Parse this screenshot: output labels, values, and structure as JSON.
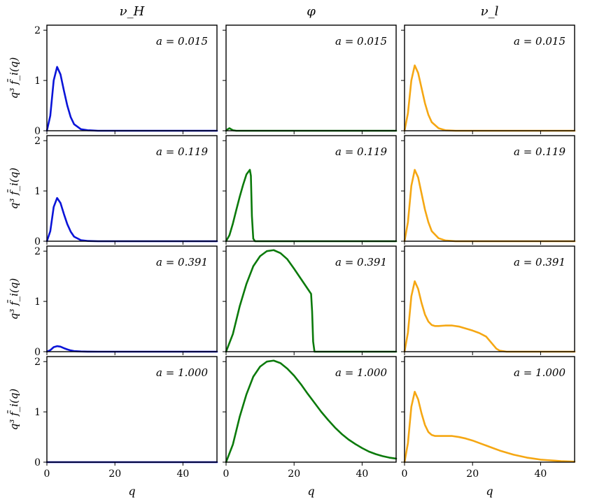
{
  "chart_data": {
    "type": "line",
    "layout": "grid of line plots, 4 rows by 3 columns, shared axes",
    "column_titles": [
      "ν_H",
      "φ",
      "ν_l"
    ],
    "row_labels": [
      "a = 0.015",
      "a = 0.119",
      "a = 0.391",
      "a = 1.000"
    ],
    "xlabel": "q",
    "ylabel": "q³ f̄_i(q)",
    "xlim": [
      0,
      50
    ],
    "ylim": [
      0,
      2.1
    ],
    "xticks": [
      0,
      20,
      40
    ],
    "yticks": [
      0,
      1,
      2
    ],
    "grid": false,
    "legend": "none",
    "colors": {
      "nu_H": "#0a14d8",
      "phi": "#0b7a0b",
      "nu_l": "#f5a713"
    },
    "series": [
      {
        "col": 0,
        "row": 0,
        "x": [
          0,
          1,
          2,
          3,
          4,
          5,
          6,
          7,
          8,
          10,
          12,
          15,
          20,
          30,
          50
        ],
        "y": [
          0,
          0.3,
          1.0,
          1.27,
          1.12,
          0.8,
          0.5,
          0.27,
          0.13,
          0.03,
          0.01,
          0,
          0,
          0,
          0
        ]
      },
      {
        "col": 0,
        "row": 1,
        "x": [
          0,
          1,
          2,
          3,
          4,
          5,
          6,
          7,
          8,
          10,
          12,
          15,
          20,
          30,
          50
        ],
        "y": [
          0,
          0.2,
          0.68,
          0.86,
          0.76,
          0.54,
          0.34,
          0.19,
          0.09,
          0.02,
          0.005,
          0,
          0,
          0,
          0
        ]
      },
      {
        "col": 0,
        "row": 2,
        "x": [
          0,
          1,
          2,
          3,
          4,
          5,
          6,
          7,
          8,
          10,
          12,
          15,
          20,
          30,
          50
        ],
        "y": [
          0,
          0.03,
          0.09,
          0.11,
          0.1,
          0.07,
          0.045,
          0.025,
          0.012,
          0.004,
          0.001,
          0,
          0,
          0,
          0
        ]
      },
      {
        "col": 0,
        "row": 3,
        "x": [
          0,
          10,
          20,
          30,
          40,
          50
        ],
        "y": [
          0,
          0,
          0,
          0,
          0,
          0
        ]
      },
      {
        "col": 1,
        "row": 0,
        "x": [
          0,
          0.5,
          1,
          1.5,
          2,
          3,
          5,
          10,
          20,
          30,
          50
        ],
        "y": [
          0,
          0.03,
          0.05,
          0.03,
          0.01,
          0,
          0,
          0,
          0,
          0,
          0
        ]
      },
      {
        "col": 1,
        "row": 1,
        "x": [
          0,
          1,
          2,
          3,
          4,
          5,
          6,
          7,
          7.3,
          7.6,
          8,
          8.5,
          10,
          20,
          30,
          50
        ],
        "y": [
          0,
          0.12,
          0.35,
          0.62,
          0.88,
          1.12,
          1.33,
          1.42,
          1.3,
          0.5,
          0.05,
          0,
          0,
          0,
          0,
          0
        ]
      },
      {
        "col": 1,
        "row": 2,
        "x": [
          0,
          2,
          4,
          6,
          8,
          10,
          12,
          14,
          16,
          18,
          20,
          22,
          24,
          25,
          25.3,
          25.6,
          26,
          27,
          30,
          50
        ],
        "y": [
          0,
          0.35,
          0.9,
          1.35,
          1.7,
          1.9,
          2.0,
          2.02,
          1.96,
          1.84,
          1.65,
          1.45,
          1.25,
          1.15,
          0.8,
          0.2,
          0,
          0,
          0,
          0
        ]
      },
      {
        "col": 1,
        "row": 3,
        "x": [
          0,
          2,
          4,
          6,
          8,
          10,
          12,
          14,
          16,
          18,
          20,
          22,
          24,
          26,
          28,
          30,
          32,
          34,
          36,
          38,
          40,
          42,
          44,
          46,
          48,
          50
        ],
        "y": [
          0,
          0.35,
          0.9,
          1.35,
          1.7,
          1.9,
          2.0,
          2.02,
          1.97,
          1.86,
          1.72,
          1.55,
          1.36,
          1.18,
          1.0,
          0.84,
          0.69,
          0.56,
          0.45,
          0.36,
          0.28,
          0.21,
          0.16,
          0.12,
          0.09,
          0.07
        ]
      },
      {
        "col": 2,
        "row": 0,
        "x": [
          0,
          1,
          2,
          3,
          4,
          5,
          6,
          7,
          8,
          10,
          12,
          15,
          20,
          30,
          50
        ],
        "y": [
          0,
          0.35,
          1.0,
          1.3,
          1.15,
          0.85,
          0.55,
          0.32,
          0.17,
          0.05,
          0.01,
          0,
          0,
          0,
          0
        ]
      },
      {
        "col": 2,
        "row": 1,
        "x": [
          0,
          1,
          2,
          3,
          4,
          5,
          6,
          7,
          8,
          10,
          12,
          15,
          20,
          30,
          50
        ],
        "y": [
          0,
          0.38,
          1.1,
          1.42,
          1.27,
          0.95,
          0.63,
          0.38,
          0.2,
          0.06,
          0.015,
          0,
          0,
          0,
          0
        ]
      },
      {
        "col": 2,
        "row": 2,
        "x": [
          0,
          1,
          2,
          3,
          4,
          5,
          6,
          7,
          8,
          9,
          10,
          12,
          14,
          16,
          18,
          20,
          22,
          24,
          25,
          26,
          27,
          28,
          30,
          35,
          50
        ],
        "y": [
          0,
          0.38,
          1.1,
          1.4,
          1.25,
          0.97,
          0.74,
          0.6,
          0.53,
          0.51,
          0.51,
          0.52,
          0.52,
          0.5,
          0.46,
          0.42,
          0.37,
          0.3,
          0.22,
          0.14,
          0.06,
          0.02,
          0,
          0,
          0
        ]
      },
      {
        "col": 2,
        "row": 3,
        "x": [
          0,
          1,
          2,
          3,
          4,
          5,
          6,
          7,
          8,
          9,
          10,
          12,
          14,
          16,
          18,
          20,
          22,
          24,
          26,
          28,
          30,
          32,
          34,
          36,
          38,
          40,
          42,
          44,
          46,
          48,
          50
        ],
        "y": [
          0,
          0.38,
          1.1,
          1.4,
          1.25,
          0.97,
          0.74,
          0.6,
          0.54,
          0.52,
          0.52,
          0.52,
          0.52,
          0.5,
          0.47,
          0.43,
          0.38,
          0.33,
          0.28,
          0.23,
          0.19,
          0.15,
          0.12,
          0.09,
          0.07,
          0.05,
          0.04,
          0.03,
          0.02,
          0.015,
          0.01
        ]
      }
    ]
  }
}
